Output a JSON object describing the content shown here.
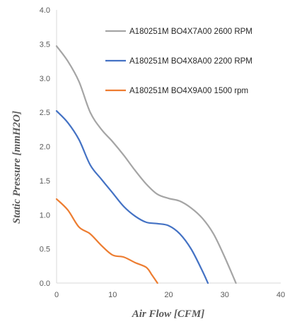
{
  "chart_data": {
    "type": "line",
    "xlabel": "Air Flow [CFM]",
    "ylabel": "Static Pressure [mmH2O]",
    "xlim": [
      0,
      40
    ],
    "ylim": [
      0,
      4.0
    ],
    "x_ticks": [
      "0",
      "10",
      "20",
      "30",
      "40"
    ],
    "y_ticks": [
      "0.0",
      "0.5",
      "1.0",
      "1.5",
      "2.0",
      "2.5",
      "3.0",
      "3.5",
      "4.0"
    ],
    "grid": false,
    "legend_position": "top-right",
    "series": [
      {
        "name": "A180251M BO4X7A00 2600 RPM",
        "color": "#a5a5a5",
        "x": [
          0,
          2,
          4,
          6,
          8,
          10,
          12,
          14,
          16,
          18,
          20,
          22,
          24,
          26,
          28,
          30,
          32
        ],
        "y": [
          3.47,
          3.25,
          2.95,
          2.5,
          2.25,
          2.07,
          1.87,
          1.65,
          1.45,
          1.3,
          1.24,
          1.2,
          1.1,
          0.95,
          0.72,
          0.38,
          0.0
        ]
      },
      {
        "name": "A180251M BO4X8A00 2200 RPM",
        "color": "#4472c4",
        "x": [
          0,
          2,
          4,
          6,
          8,
          10,
          12,
          14,
          16,
          18,
          20,
          22,
          24,
          26,
          27
        ],
        "y": [
          2.52,
          2.35,
          2.1,
          1.73,
          1.52,
          1.32,
          1.12,
          0.98,
          0.89,
          0.87,
          0.84,
          0.72,
          0.5,
          0.18,
          0.0
        ]
      },
      {
        "name": "A180251M BO4X9A00 1500 rpm",
        "color": "#ed7d31",
        "x": [
          0,
          2,
          4,
          6,
          8,
          10,
          12,
          14,
          16,
          17,
          18
        ],
        "y": [
          1.23,
          1.07,
          0.82,
          0.72,
          0.55,
          0.41,
          0.38,
          0.3,
          0.23,
          0.12,
          0.0
        ]
      }
    ]
  }
}
